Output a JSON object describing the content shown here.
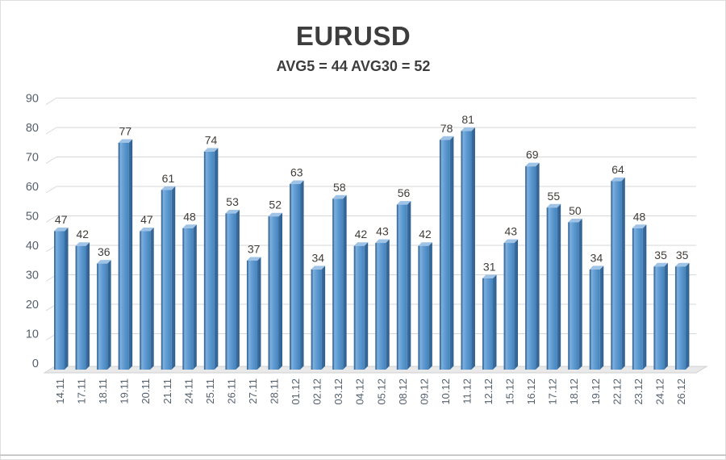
{
  "header": {
    "title": "EURUSD",
    "subtitle": "AVG5 = 44 AVG30 = 52"
  },
  "chart_data": {
    "type": "bar",
    "style": "3d-column",
    "title": "EURUSD",
    "subtitle": "AVG5 = 44 AVG30 = 52",
    "xlabel": "",
    "ylabel": "",
    "categories": [
      "14.11",
      "17.11",
      "18.11",
      "19.11",
      "20.11",
      "21.11",
      "24.11",
      "25.11",
      "26.11",
      "27.11",
      "28.11",
      "01.12",
      "02.12",
      "03.12",
      "04.12",
      "05.12",
      "08.12",
      "09.12",
      "10.12",
      "11.12",
      "12.12",
      "15.12",
      "16.12",
      "17.12",
      "18.12",
      "19.12",
      "22.12",
      "23.12",
      "24.12",
      "26.12"
    ],
    "values": [
      47,
      42,
      36,
      77,
      47,
      61,
      48,
      74,
      53,
      37,
      52,
      63,
      34,
      58,
      42,
      43,
      56,
      42,
      78,
      81,
      31,
      43,
      69,
      55,
      50,
      34,
      64,
      48,
      35,
      35
    ],
    "ylim": [
      0,
      90
    ],
    "yticks": [
      0,
      10,
      20,
      30,
      40,
      50,
      60,
      70,
      80,
      90
    ],
    "grid": true,
    "legend": "none",
    "colors": {
      "bar_left_edge": "#3e6f9f",
      "bar_front_light": "#7fb0de",
      "bar_front_mid": "#649fd5",
      "bar_front_dark": "#4483bb",
      "bar_side_light": "#3d70a4",
      "bar_side_dark": "#2e5e8d",
      "bar_top": "#9fc3e6",
      "gridline": "#d7d7d7",
      "floor_fill": "#e9e9e9",
      "floor_edge": "#d0d0d0",
      "axis_label": "#55606d",
      "value_label": "#403c38",
      "title": "#3d3d3d"
    }
  }
}
